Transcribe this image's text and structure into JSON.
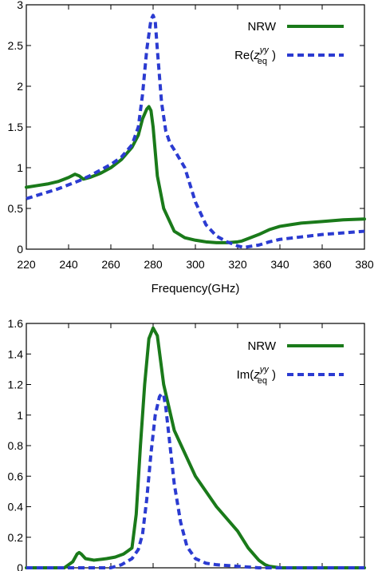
{
  "chart_data": [
    {
      "type": "line",
      "xlabel": "Frequency(GHz)",
      "ylabel": "",
      "xlim": [
        220,
        380
      ],
      "ylim": [
        0,
        3
      ],
      "xticks": [
        220,
        240,
        260,
        280,
        300,
        320,
        340,
        360,
        380
      ],
      "xtick_labels": [
        "220",
        "240",
        "260",
        "280",
        "300",
        "320",
        "340",
        "360",
        "380"
      ],
      "yticks": [
        0,
        0.5,
        1,
        1.5,
        2,
        2.5,
        3
      ],
      "ytick_labels": [
        "0",
        "0.5",
        "1",
        "1.5",
        "2",
        "2.5",
        "3"
      ],
      "legend_position": "top-right",
      "series": [
        {
          "name": "NRW",
          "color": "#1a7a1a",
          "style": "solid",
          "x": [
            220,
            225,
            230,
            235,
            240,
            243,
            245,
            247,
            250,
            255,
            260,
            265,
            270,
            273,
            275,
            277,
            278,
            279,
            280,
            282,
            285,
            290,
            295,
            300,
            305,
            310,
            315,
            320,
            322,
            325,
            330,
            335,
            340,
            345,
            350,
            360,
            370,
            380
          ],
          "y": [
            0.76,
            0.78,
            0.8,
            0.83,
            0.88,
            0.92,
            0.9,
            0.86,
            0.88,
            0.93,
            1.0,
            1.1,
            1.25,
            1.4,
            1.6,
            1.72,
            1.75,
            1.7,
            1.5,
            0.9,
            0.5,
            0.22,
            0.14,
            0.11,
            0.09,
            0.08,
            0.08,
            0.09,
            0.1,
            0.13,
            0.18,
            0.24,
            0.28,
            0.3,
            0.32,
            0.34,
            0.36,
            0.37
          ]
        },
        {
          "name": "Re(z_eq^yy)",
          "color": "#2b3bd1",
          "style": "dashed",
          "x": [
            220,
            225,
            230,
            235,
            240,
            245,
            250,
            255,
            260,
            265,
            270,
            273,
            275,
            277,
            279,
            280,
            281,
            282,
            284,
            286,
            288,
            290,
            295,
            300,
            305,
            310,
            315,
            320,
            323,
            325,
            330,
            335,
            340,
            350,
            360,
            370,
            380
          ],
          "y": [
            0.62,
            0.66,
            0.7,
            0.74,
            0.79,
            0.84,
            0.9,
            0.97,
            1.04,
            1.13,
            1.28,
            1.5,
            1.9,
            2.45,
            2.82,
            2.87,
            2.8,
            2.45,
            1.8,
            1.45,
            1.3,
            1.22,
            1.0,
            0.58,
            0.3,
            0.16,
            0.09,
            0.04,
            0.02,
            0.03,
            0.05,
            0.09,
            0.12,
            0.15,
            0.18,
            0.2,
            0.22
          ]
        }
      ]
    },
    {
      "type": "line",
      "xlabel": "",
      "ylabel": "",
      "xlim": [
        220,
        380
      ],
      "ylim": [
        0,
        1.6
      ],
      "yticks": [
        0,
        0.2,
        0.4,
        0.6,
        0.8,
        1,
        1.2,
        1.4,
        1.6
      ],
      "ytick_labels": [
        "0",
        "0.2",
        "0.4",
        "0.6",
        "0.8",
        "1",
        "1.2",
        "1.4",
        "1.6"
      ],
      "legend_position": "top-right",
      "series": [
        {
          "name": "NRW",
          "color": "#1a7a1a",
          "style": "solid",
          "x": [
            220,
            230,
            238,
            242,
            244,
            245,
            246,
            248,
            252,
            258,
            262,
            266,
            268,
            270,
            272,
            274,
            276,
            278,
            280,
            282,
            285,
            290,
            300,
            310,
            320,
            325,
            330,
            333,
            335,
            340,
            350,
            360,
            370,
            380
          ],
          "y": [
            0.0,
            0.0,
            0.0,
            0.04,
            0.09,
            0.1,
            0.09,
            0.06,
            0.05,
            0.06,
            0.07,
            0.09,
            0.11,
            0.13,
            0.35,
            0.8,
            1.2,
            1.5,
            1.57,
            1.52,
            1.2,
            0.9,
            0.6,
            0.4,
            0.24,
            0.13,
            0.05,
            0.02,
            0.01,
            0.0,
            0.0,
            0.0,
            0.0,
            0.0
          ]
        },
        {
          "name": "Im(z_eq^yy)",
          "color": "#2b3bd1",
          "style": "dashed",
          "x": [
            220,
            230,
            240,
            250,
            260,
            265,
            270,
            273,
            275,
            277,
            279,
            281,
            283,
            284,
            285,
            286,
            288,
            290,
            293,
            296,
            300,
            305,
            310,
            320,
            330,
            340,
            360,
            380
          ],
          "y": [
            0.0,
            0.0,
            0.0,
            0.0,
            0.0,
            0.02,
            0.06,
            0.12,
            0.22,
            0.45,
            0.75,
            1.0,
            1.12,
            1.14,
            1.13,
            1.05,
            0.8,
            0.55,
            0.3,
            0.14,
            0.06,
            0.03,
            0.02,
            0.01,
            0.0,
            0.0,
            0.0,
            0.0
          ]
        }
      ]
    }
  ],
  "legend": {
    "top": {
      "nrw_label": "NRW",
      "re_prefix": "Re(",
      "z_letter": "z",
      "superscript": "yy",
      "subscript": "eq",
      "closing": ")"
    },
    "bottom": {
      "nrw_label": "NRW",
      "im_prefix": "Im(",
      "z_letter": "z",
      "superscript": "yy",
      "subscript": "eq",
      "closing": ")"
    }
  }
}
